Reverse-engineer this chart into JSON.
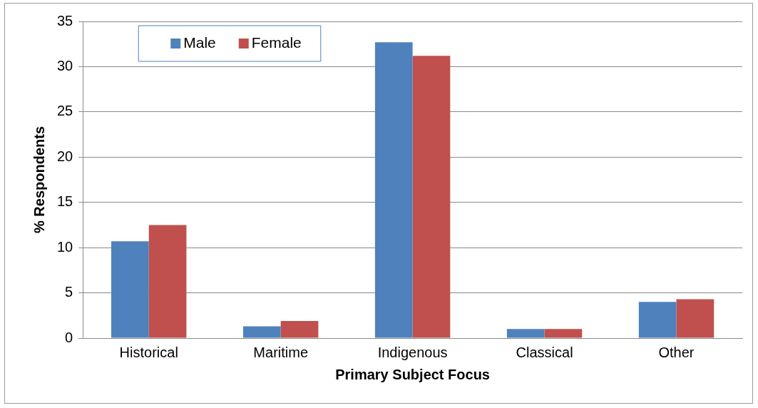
{
  "chart_data": {
    "type": "bar",
    "xlabel": "Primary Subject Focus",
    "ylabel": "% Respondents",
    "categories": [
      "Historical",
      "Maritime",
      "Indigenous",
      "Classical",
      "Other"
    ],
    "series": [
      {
        "name": "Male",
        "color": "#4f81bd",
        "values": [
          10.7,
          1.3,
          32.7,
          1.0,
          4.0
        ]
      },
      {
        "name": "Female",
        "color": "#c0504d",
        "values": [
          12.5,
          1.9,
          31.2,
          1.0,
          4.3
        ]
      }
    ],
    "ylim": [
      0,
      35
    ],
    "yticks": [
      0,
      5,
      10,
      15,
      20,
      25,
      30,
      35
    ],
    "grid": "y",
    "legend": "top left"
  }
}
